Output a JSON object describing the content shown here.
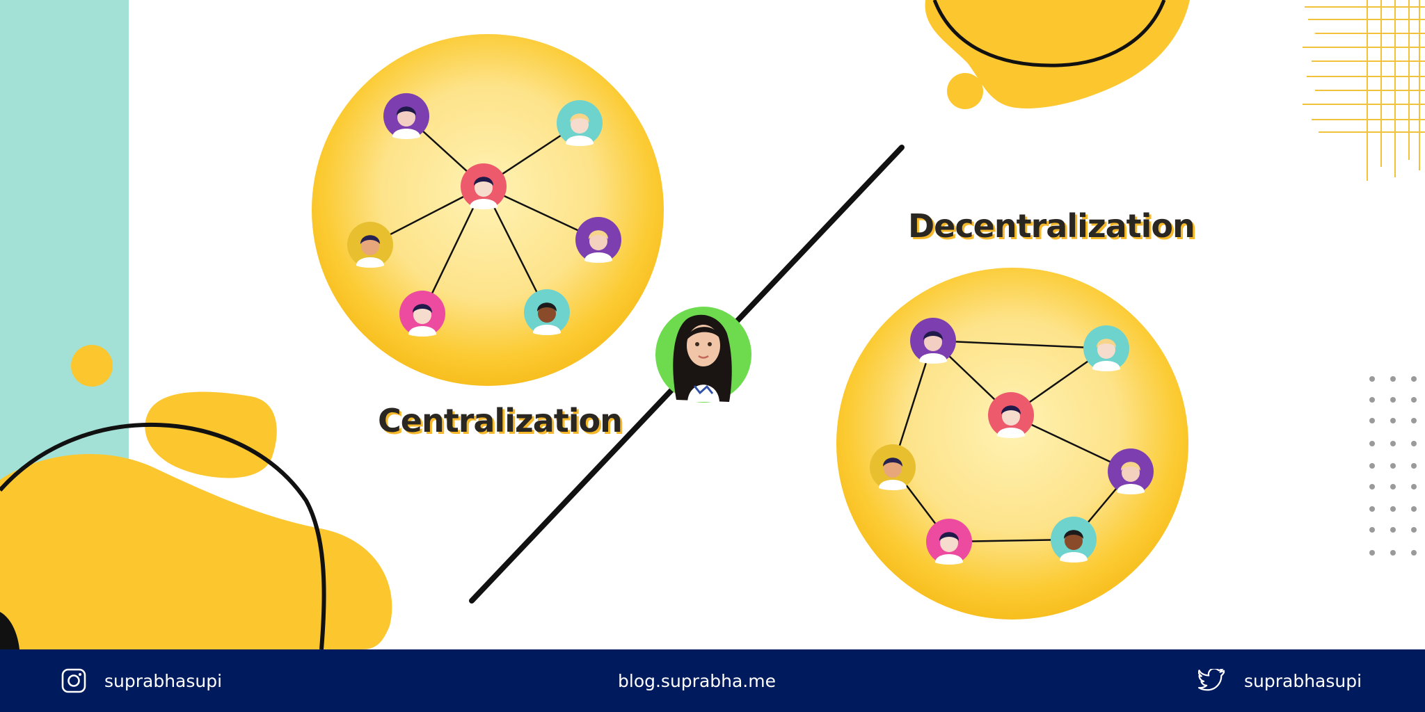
{
  "colors": {
    "yellow": "#fcc62e",
    "teal": "#a3e1d7",
    "navy": "#001a5e",
    "line": "#111111",
    "hub": "#ec5a6b",
    "node_purple": "#7d3fb0",
    "node_teal": "#6fd3cd",
    "node_mustard": "#e7bf2f",
    "node_pink": "#ec4b9f",
    "avatar_bg": "#6edb4f"
  },
  "labels": {
    "centralization": "Centralization",
    "decentralization": "Decentralization"
  },
  "footer": {
    "instagram_handle": "suprabhasupi",
    "blog_url": "blog.suprabha.me",
    "twitter_handle": "suprabhasupi"
  },
  "icons": [
    "instagram-icon",
    "twitter-icon"
  ]
}
